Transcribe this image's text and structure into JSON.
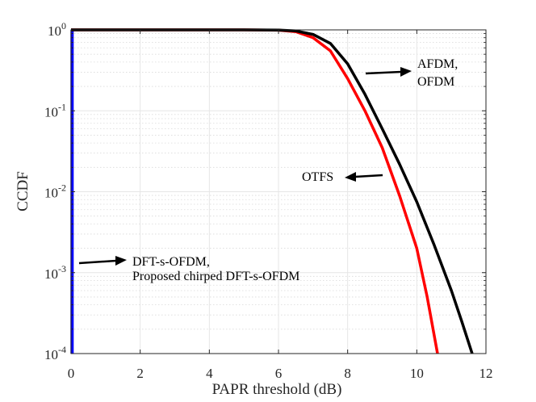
{
  "chart_data": {
    "type": "line",
    "title": "",
    "xlabel": "PAPR threshold (dB)",
    "ylabel": "CCDF",
    "xlim": [
      0,
      12
    ],
    "ylim": [
      0.0001,
      1
    ],
    "yscale": "log",
    "grid": true,
    "x_ticks": [
      0,
      2,
      4,
      6,
      8,
      10,
      12
    ],
    "x_tick_labels": [
      "0",
      "2",
      "4",
      "6",
      "8",
      "10",
      "12"
    ],
    "y_ticks": [
      {
        "value": 1,
        "base": "10",
        "exp": "0"
      },
      {
        "value": 0.1,
        "base": "10",
        "exp": "-1"
      },
      {
        "value": 0.01,
        "base": "10",
        "exp": "-2"
      },
      {
        "value": 0.001,
        "base": "10",
        "exp": "-3"
      },
      {
        "value": 0.0001,
        "base": "10",
        "exp": "-4"
      }
    ],
    "series": [
      {
        "name": "DFT-s-OFDM, Proposed chirped DFT-s-OFDM",
        "color": "#0000ff",
        "x": [
          0.03,
          0.03
        ],
        "y": [
          1,
          0.0001
        ]
      },
      {
        "name": "OTFS",
        "color": "#ff0000",
        "x": [
          0,
          1,
          2,
          3,
          4,
          5,
          6,
          6.5,
          7,
          7.5,
          8,
          8.5,
          9,
          9.5,
          10,
          10.3,
          10.6
        ],
        "y": [
          1,
          1,
          1,
          1,
          1,
          1,
          0.99,
          0.95,
          0.8,
          0.55,
          0.25,
          0.1,
          0.035,
          0.009,
          0.002,
          0.0005,
          0.0001
        ]
      },
      {
        "name": "AFDM, OFDM",
        "color": "#000000",
        "x": [
          0,
          1,
          2,
          3,
          4,
          5,
          6,
          6.5,
          7,
          7.5,
          8,
          8.5,
          9,
          9.5,
          10,
          10.5,
          11,
          11.3,
          11.6
        ],
        "y": [
          1,
          1,
          1,
          1,
          1,
          1,
          0.995,
          0.97,
          0.88,
          0.68,
          0.38,
          0.16,
          0.06,
          0.022,
          0.0075,
          0.0022,
          0.0006,
          0.00025,
          0.0001
        ]
      }
    ],
    "annotations": [
      {
        "id": "afdm",
        "lines": [
          "AFDM,",
          "OFDM"
        ],
        "series": "AFDM, OFDM"
      },
      {
        "id": "otfs",
        "lines": [
          "OTFS"
        ],
        "series": "OTFS"
      },
      {
        "id": "dft",
        "lines": [
          "DFT-s-OFDM,",
          "Proposed chirped DFT-s-OFDM"
        ],
        "series": "DFT-s-OFDM, Proposed chirped DFT-s-OFDM"
      }
    ]
  }
}
